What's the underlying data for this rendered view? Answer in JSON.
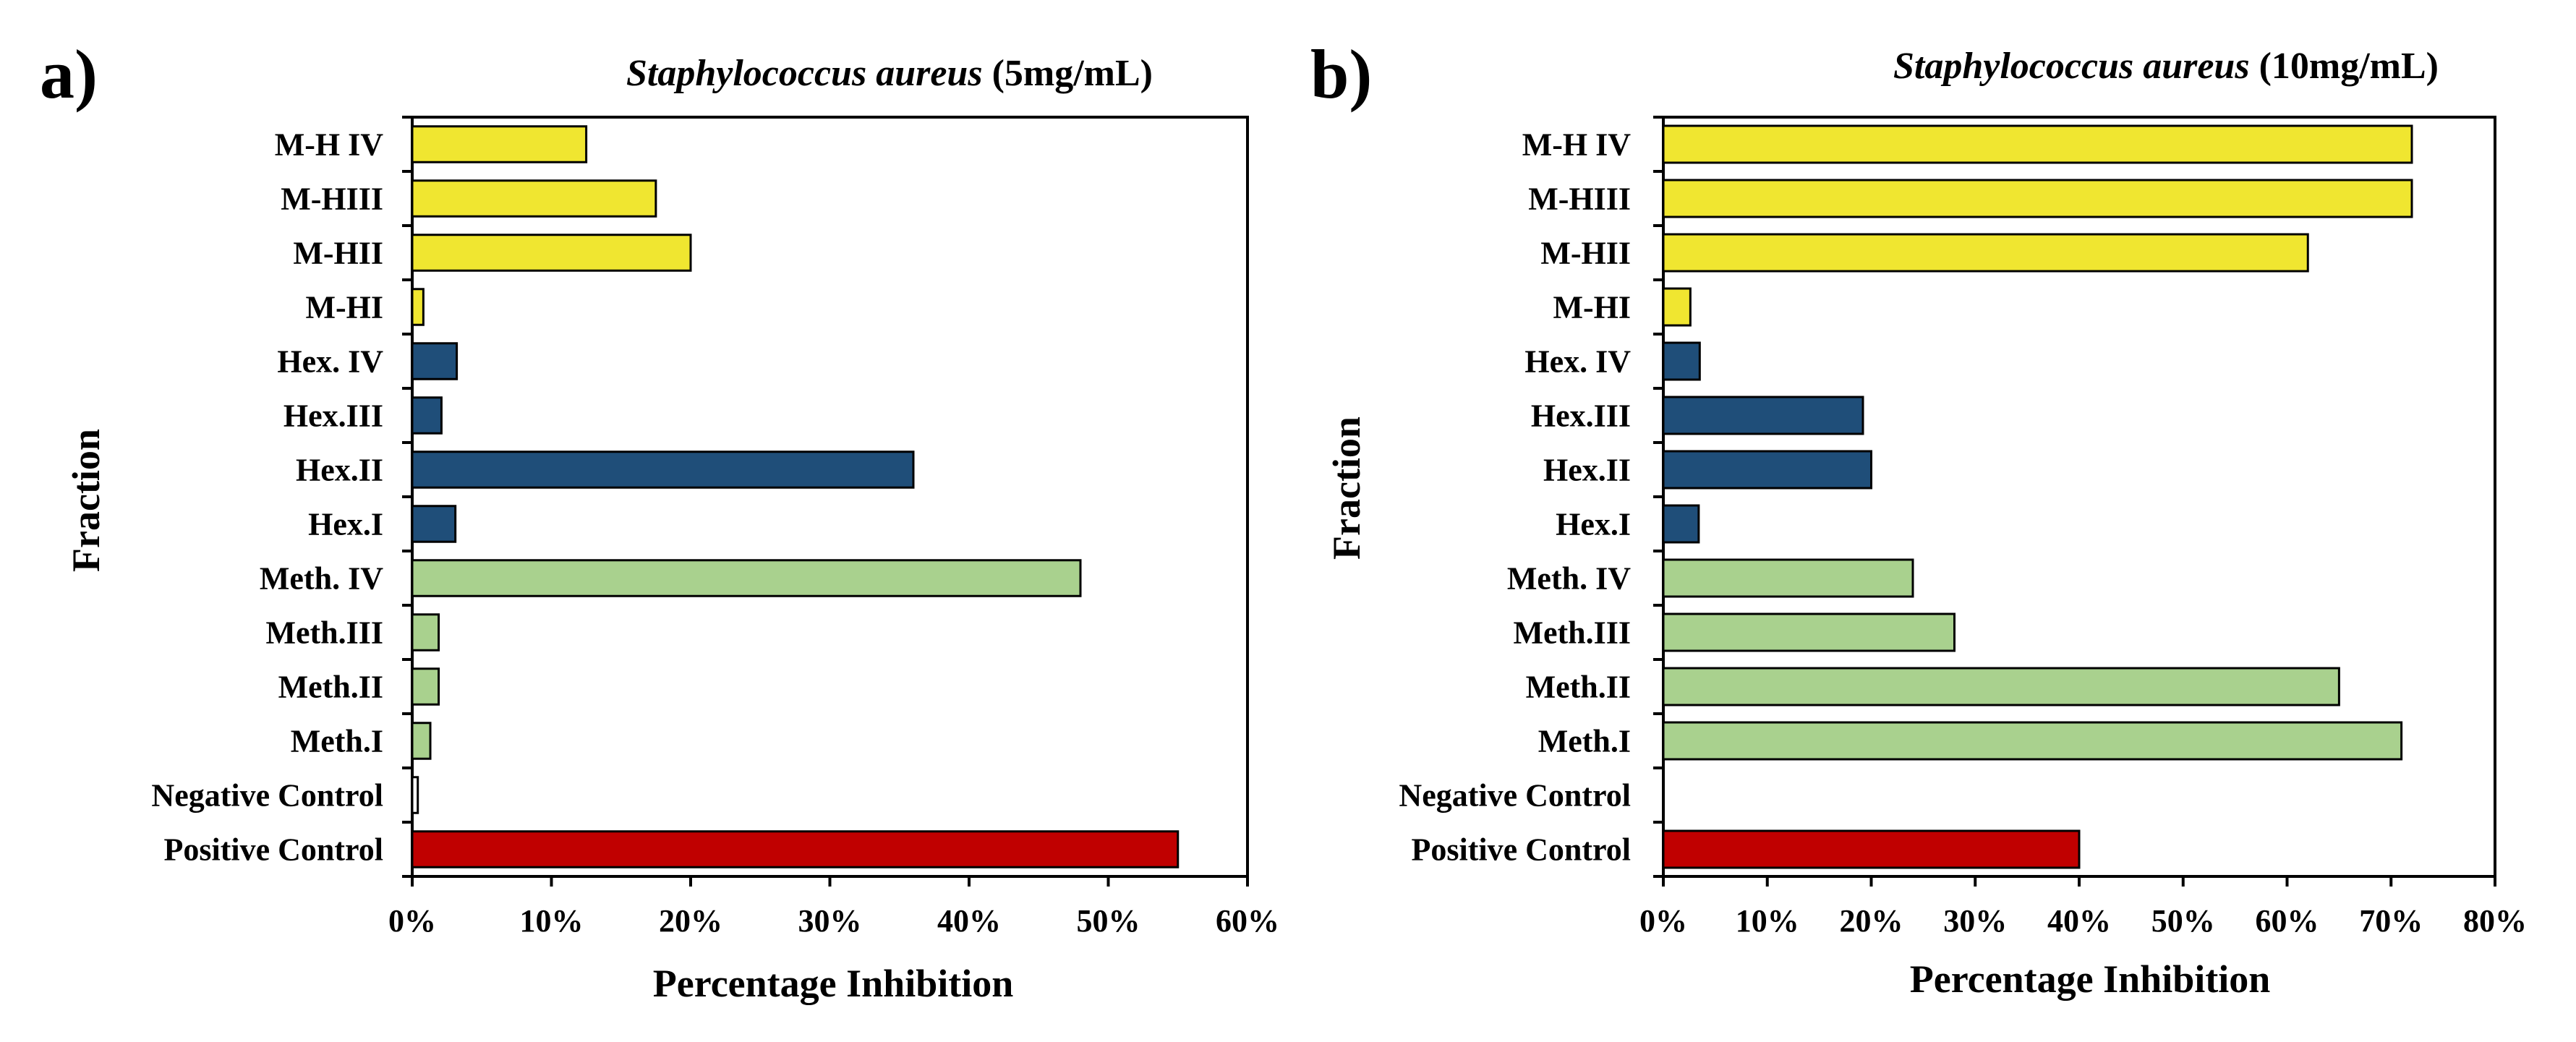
{
  "chart_data": [
    {
      "type": "bar",
      "orientation": "horizontal",
      "panel_label": "a)",
      "title_italic": "Staphylococcus aureus",
      "title_rest": " (5mg/mL)",
      "xlabel": "Percentage Inhibition",
      "ylabel": "Fraction",
      "xlim": [
        0,
        60
      ],
      "xticks": [
        "0%",
        "10%",
        "20%",
        "30%",
        "40%",
        "50%",
        "60%"
      ],
      "grid": false,
      "categories": [
        "M-H IV",
        "M-HIII",
        "M-HII",
        "M-HI",
        "Hex. IV",
        "Hex.III",
        "Hex.II",
        "Hex.I",
        "Meth. IV",
        "Meth.III",
        "Meth.II",
        "Meth.I",
        "Negative Control",
        "Positive Control"
      ],
      "values": [
        12.5,
        17.5,
        20,
        0.8,
        3.2,
        2.1,
        36,
        3.1,
        48,
        1.9,
        1.9,
        1.3,
        0.4,
        55
      ],
      "colors": [
        "#f0e630",
        "#f0e630",
        "#f0e630",
        "#f0e630",
        "#1f4e79",
        "#1f4e79",
        "#1f4e79",
        "#1f4e79",
        "#a9d18e",
        "#a9d18e",
        "#a9d18e",
        "#a9d18e",
        "#ffffff",
        "#c00000"
      ]
    },
    {
      "type": "bar",
      "orientation": "horizontal",
      "panel_label": "b)",
      "title_italic": "Staphylococcus aureus",
      "title_rest": " (10mg/mL)",
      "xlabel": "Percentage Inhibition",
      "ylabel": "Fraction",
      "xlim": [
        0,
        80
      ],
      "xticks": [
        "0%",
        "10%",
        "20%",
        "30%",
        "40%",
        "50%",
        "60%",
        "70%",
        "80%"
      ],
      "grid": false,
      "categories": [
        "M-H IV",
        "M-HIII",
        "M-HII",
        "M-HI",
        "Hex. IV",
        "Hex.III",
        "Hex.II",
        "Hex.I",
        "Meth. IV",
        "Meth.III",
        "Meth.II",
        "Meth.I",
        "Negative Control",
        "Positive Control"
      ],
      "values": [
        72,
        72,
        62,
        2.6,
        3.5,
        19.2,
        20,
        3.4,
        24,
        28,
        65,
        71,
        0,
        40
      ],
      "colors": [
        "#f0e630",
        "#f0e630",
        "#f0e630",
        "#f0e630",
        "#1f4e79",
        "#1f4e79",
        "#1f4e79",
        "#1f4e79",
        "#a9d18e",
        "#a9d18e",
        "#a9d18e",
        "#a9d18e",
        "#ffffff",
        "#c00000"
      ]
    }
  ]
}
